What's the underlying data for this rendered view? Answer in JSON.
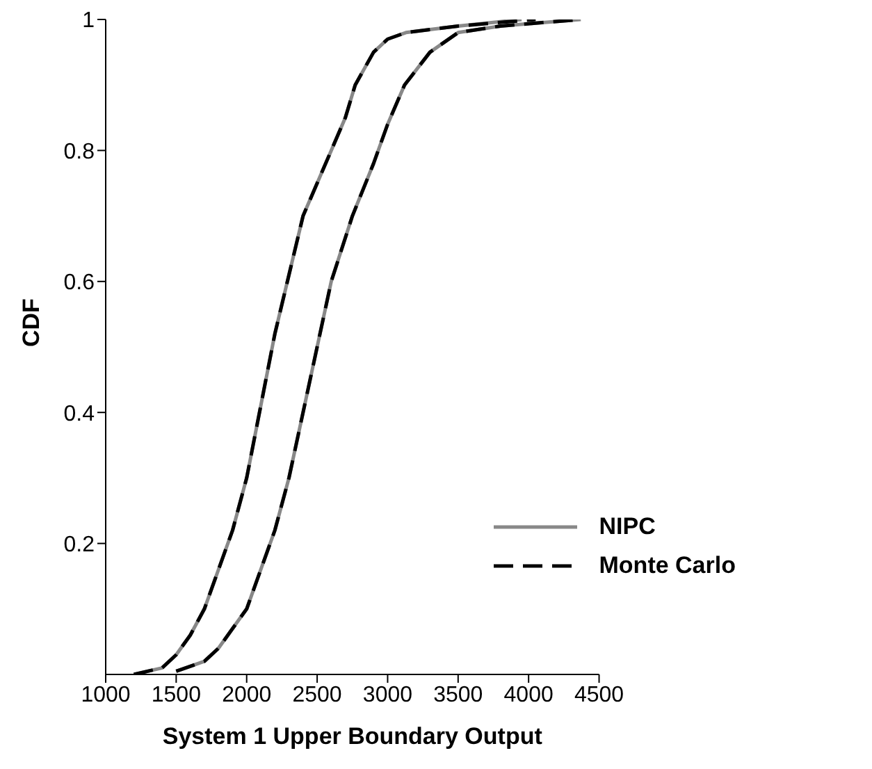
{
  "chart_data": {
    "type": "line",
    "xlabel": "System 1 Upper Boundary Output",
    "ylabel": "CDF",
    "xlim": [
      1000,
      4500
    ],
    "xticks": [
      1000,
      1500,
      2000,
      2500,
      3000,
      3500,
      4000,
      4500
    ],
    "ylim": [
      0,
      1
    ],
    "yticks": [
      0.2,
      0.4,
      0.6,
      0.8,
      1
    ],
    "grid": false,
    "legend": "bottom right",
    "marker": "none",
    "series": [
      {
        "name": "NIPC",
        "color": "#888888",
        "line_style": "solid",
        "x": [
          1200,
          1400,
          1500,
          1600,
          1700,
          1800,
          1900,
          2000,
          2100,
          2200,
          2300,
          2400,
          2500,
          2600,
          2700,
          2770,
          2900,
          3000,
          3130,
          3500,
          3950
        ],
        "values": [
          0,
          0.01,
          0.03,
          0.06,
          0.1,
          0.16,
          0.22,
          0.3,
          0.41,
          0.52,
          0.61,
          0.7,
          0.75,
          0.8,
          0.85,
          0.9,
          0.95,
          0.97,
          0.98,
          0.99,
          1
        ]
      },
      {
        "name": "Monte Carlo",
        "color": "#000000",
        "line_style": "dashed",
        "x": [
          1200,
          1400,
          1500,
          1600,
          1700,
          1800,
          1900,
          2000,
          2100,
          2200,
          2300,
          2400,
          2500,
          2600,
          2700,
          2770,
          2900,
          3000,
          3130,
          3500,
          4050
        ],
        "values": [
          0,
          0.01,
          0.03,
          0.06,
          0.1,
          0.16,
          0.22,
          0.3,
          0.41,
          0.52,
          0.61,
          0.7,
          0.75,
          0.8,
          0.85,
          0.9,
          0.95,
          0.97,
          0.98,
          0.99,
          1
        ]
      },
      {
        "color": "#888888",
        "line_style": "solid",
        "x": [
          1500,
          1700,
          1800,
          1900,
          2000,
          2100,
          2200,
          2300,
          2400,
          2500,
          2600,
          2750,
          2900,
          3000,
          3120,
          3300,
          3500,
          3800,
          4370
        ],
        "values": [
          0.005,
          0.02,
          0.04,
          0.07,
          0.1,
          0.16,
          0.22,
          0.3,
          0.4,
          0.5,
          0.6,
          0.7,
          0.78,
          0.84,
          0.9,
          0.95,
          0.98,
          0.99,
          1
        ]
      },
      {
        "color": "#000000",
        "line_style": "dashed",
        "x": [
          1500,
          1700,
          1800,
          1900,
          2000,
          2100,
          2200,
          2300,
          2400,
          2500,
          2600,
          2750,
          2900,
          3000,
          3120,
          3300,
          3500,
          3800,
          4370
        ],
        "values": [
          0.005,
          0.02,
          0.04,
          0.07,
          0.1,
          0.16,
          0.22,
          0.3,
          0.4,
          0.5,
          0.6,
          0.7,
          0.78,
          0.84,
          0.9,
          0.95,
          0.98,
          0.99,
          1
        ]
      }
    ]
  }
}
